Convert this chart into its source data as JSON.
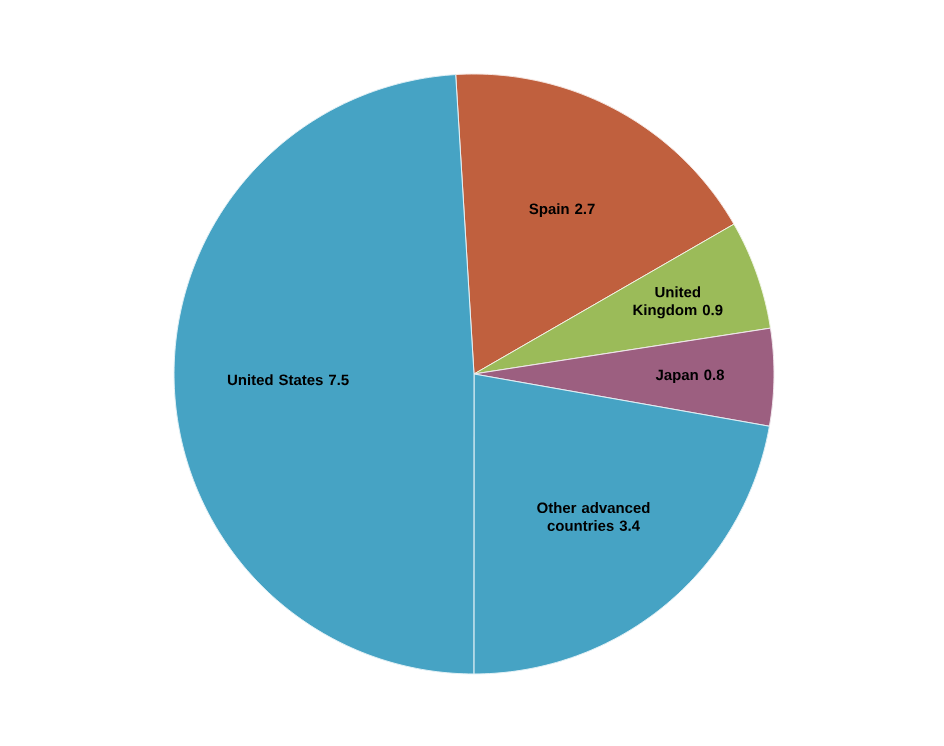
{
  "chart_data": {
    "type": "pie",
    "categories": [
      "Spain",
      "United Kingdom",
      "Japan",
      "Other advanced countries",
      "United States"
    ],
    "values": [
      2.7,
      0.9,
      0.8,
      3.4,
      7.5
    ],
    "colors": [
      "#c0603e",
      "#9bbb59",
      "#9c5f80",
      "#46a3c4",
      "#46a3c4"
    ],
    "data_labels": true
  }
}
